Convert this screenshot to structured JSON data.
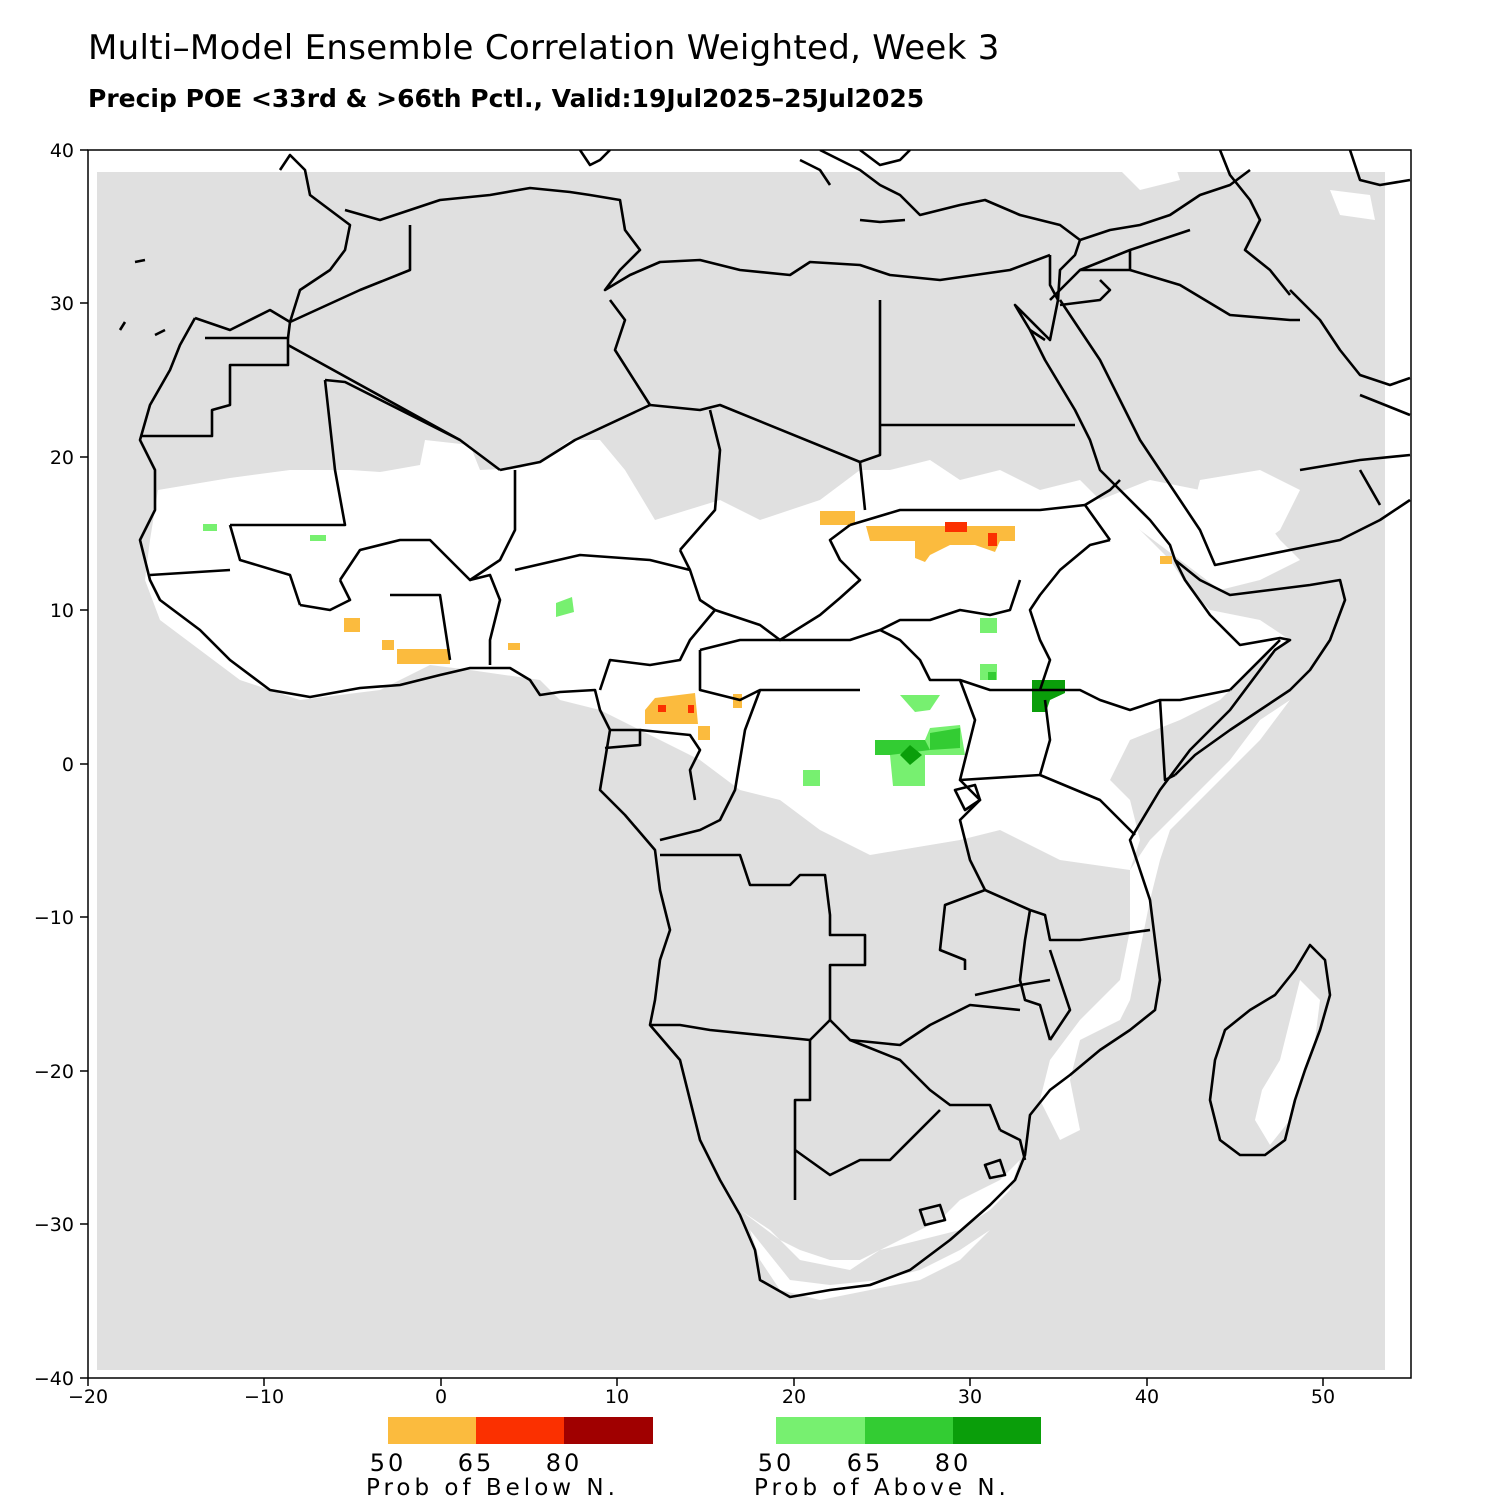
{
  "title": "Multi–Model Ensemble Correlation Weighted, Week 3",
  "subtitle": "Precip POE <33rd & >66th Pctl., Valid:19Jul2025–25Jul2025",
  "axes": {
    "x_ticks": [
      "−20",
      "−10",
      "0",
      "10",
      "20",
      "30",
      "40",
      "50"
    ],
    "y_ticks": [
      "40",
      "30",
      "20",
      "10",
      "0",
      "−10",
      "−20",
      "−30",
      "−40"
    ]
  },
  "colors": {
    "no_skill": "#e0e0e0",
    "land_sea_bg": "#ffffff",
    "below_50": "#fbbb3e",
    "below_65": "#fb3000",
    "below_80": "#a00000",
    "above_50": "#77f070",
    "above_65": "#33cc33",
    "above_80": "#0a9e0a"
  },
  "legend": {
    "below": {
      "title": "Prob of Below N.",
      "labels": [
        "50",
        "65",
        "80"
      ]
    },
    "above": {
      "title": "Prob of Above N.",
      "labels": [
        "50",
        "65",
        "80"
      ]
    }
  }
}
